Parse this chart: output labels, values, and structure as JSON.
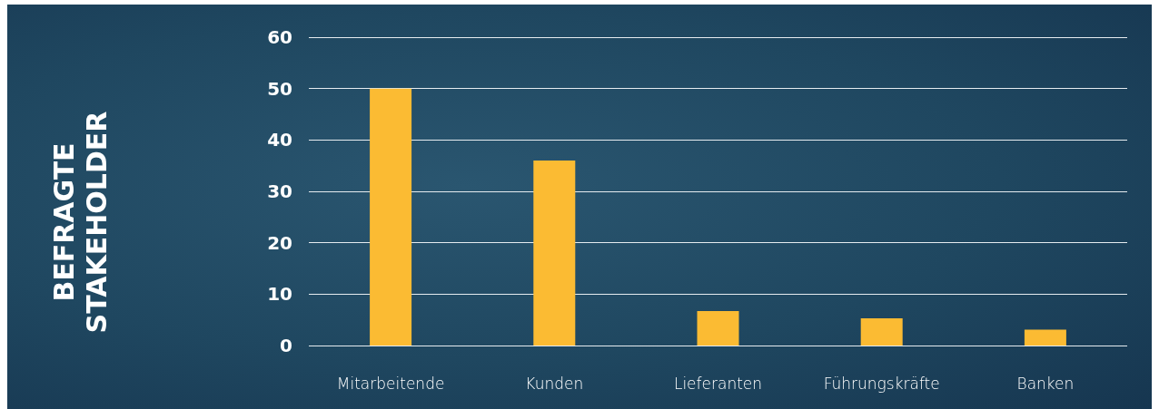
{
  "chart_data": {
    "type": "bar",
    "annotations": [
      "BEFRAGTE\nSTAKEHOLDER"
    ],
    "categories": [
      "Mitarbeitende",
      "Kunden",
      "Lieferanten",
      "Führungskräfte",
      "Banken"
    ],
    "values": [
      50,
      36,
      6.7,
      5.3,
      3.1
    ],
    "color": "#fbbb33",
    "ylim": [
      0,
      60
    ],
    "yticks": [
      0,
      10,
      20,
      30,
      40,
      50,
      60
    ],
    "grid": "y"
  }
}
